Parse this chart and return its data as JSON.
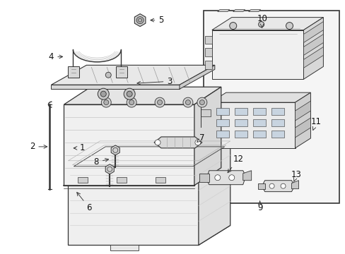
{
  "bg_color": "#ffffff",
  "line_color": "#333333",
  "label_color": "#111111",
  "fig_width": 4.89,
  "fig_height": 3.6,
  "dpi": 100,
  "label_fontsize": 8.5
}
